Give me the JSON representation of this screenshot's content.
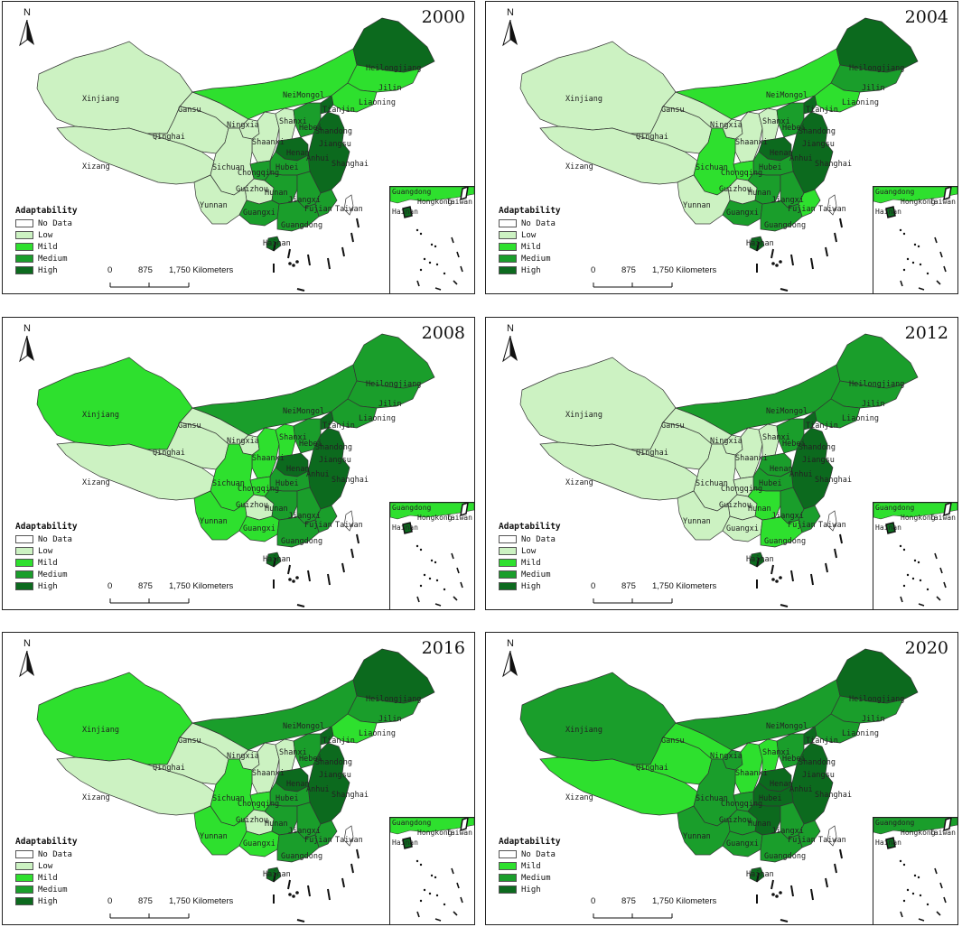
{
  "colors": {
    "No Data": "#ffffff",
    "Low": "#ccf2c2",
    "Mild": "#2ee02e",
    "Medium": "#1a9e2b",
    "High": "#0c6a1e"
  },
  "legend_title": "Adaptability",
  "scale": {
    "zero": "0",
    "mid": "875",
    "end": "1,750 Kilometers"
  },
  "north_label": "N",
  "province_labels": {
    "xinjiang": "Xinjiang",
    "xizang": "Xizang",
    "qinghai": "Qinghai",
    "gansu": "Gansu",
    "neimongol": "NeiMongol",
    "heilongjiang": "Heilongjiang",
    "jilin": "Jilin",
    "liaoning": "Liaoning",
    "sichuan": "Sichuan",
    "yunnan": "Yunnan",
    "guizhou": "Guizhou",
    "guangxi": "Guangxi",
    "hubei": "Hubei",
    "hunan": "Hunan",
    "shanxi": "Shanxi",
    "shaanxi": "Shaanxi",
    "ningxia": "Ningxia",
    "hebei": "Hebei",
    "tianjin": "Tianjin",
    "henan": "Henan",
    "jiangxi": "Jiangxi",
    "fujian": "Fujian",
    "guangdong": "Guangdong",
    "hainan": "Hainan",
    "shanghai": "Shanghai",
    "taiwan": "Taiwan",
    "chongqing": "Chongqing",
    "anhui": "Anhui",
    "jiangsu": "Jiangsu",
    "shandong": "Shandong",
    "beijing": "Beijing"
  },
  "inset_labels": {
    "guangdong": "Guangdong",
    "hainan": "Hainan",
    "hongkong": "Hongkong",
    "taiwan": "Taiwan"
  },
  "panels": [
    {
      "year": "2000",
      "legend": [
        "No Data",
        "Low",
        "Mild",
        "Medium",
        "High"
      ],
      "levels": {
        "xinjiang": "Low",
        "xizang": "Low",
        "qinghai": "Low",
        "gansu": "Low",
        "neimongol": "Mild",
        "heilongjiang": "High",
        "jilin": "Mild",
        "liaoning": "Mild",
        "sichuan": "Low",
        "yunnan": "Low",
        "guizhou": "Low",
        "guangxi": "Medium",
        "hubei": "Medium",
        "hunan": "Medium",
        "shanxi": "Low",
        "shaanxi": "Low",
        "ningxia": "Low",
        "hebei": "Medium",
        "tianjin": "High",
        "henan": "High",
        "jiangxi": "Medium",
        "fujian": "Medium",
        "guangdong": "Medium",
        "hainan": "High",
        "east": "High",
        "taiwan": "No Data",
        "chongqing": "Medium",
        "inset": "Mild"
      }
    },
    {
      "year": "2004",
      "legend": [
        "No Data",
        "Low",
        "Mild",
        "Medium",
        "High"
      ],
      "levels": {
        "xinjiang": "Low",
        "xizang": "Low",
        "qinghai": "Low",
        "gansu": "Low",
        "neimongol": "Mild",
        "heilongjiang": "High",
        "jilin": "Medium",
        "liaoning": "Mild",
        "sichuan": "Mild",
        "yunnan": "Low",
        "guizhou": "Low",
        "guangxi": "Medium",
        "hubei": "Medium",
        "hunan": "Medium",
        "shanxi": "Low",
        "shaanxi": "Low",
        "ningxia": "Low",
        "hebei": "Medium",
        "tianjin": "High",
        "henan": "High",
        "jiangxi": "Medium",
        "fujian": "Mild",
        "guangdong": "Medium",
        "hainan": "High",
        "east": "High",
        "taiwan": "No Data",
        "chongqing": "Mild",
        "inset": "Mild"
      }
    },
    {
      "year": "2008",
      "legend": [
        "No Data",
        "Low",
        "Mild",
        "Medium",
        "High"
      ],
      "levels": {
        "xinjiang": "Mild",
        "xizang": "Low",
        "qinghai": "Low",
        "gansu": "Low",
        "neimongol": "Medium",
        "heilongjiang": "Medium",
        "jilin": "Medium",
        "liaoning": "Medium",
        "sichuan": "Mild",
        "yunnan": "Mild",
        "guizhou": "Low",
        "guangxi": "Mild",
        "hubei": "Medium",
        "hunan": "Medium",
        "shanxi": "Mild",
        "shaanxi": "Mild",
        "ningxia": "Low",
        "hebei": "Medium",
        "tianjin": "High",
        "henan": "High",
        "jiangxi": "Medium",
        "fujian": "Medium",
        "guangdong": "Medium",
        "hainan": "High",
        "east": "High",
        "taiwan": "No Data",
        "chongqing": "Mild",
        "inset": "Mild"
      }
    },
    {
      "year": "2012",
      "legend": [
        "No Data",
        "Low",
        "Mild",
        "Medium",
        "High"
      ],
      "levels": {
        "xinjiang": "Low",
        "xizang": "Low",
        "qinghai": "Low",
        "gansu": "Low",
        "neimongol": "Medium",
        "heilongjiang": "Medium",
        "jilin": "Medium",
        "liaoning": "Medium",
        "sichuan": "Low",
        "yunnan": "Low",
        "guizhou": "Low",
        "guangxi": "Low",
        "hubei": "Medium",
        "hunan": "Mild",
        "shanxi": "Low",
        "shaanxi": "Low",
        "ningxia": "Low",
        "hebei": "Medium",
        "tianjin": "High",
        "henan": "Medium",
        "jiangxi": "Medium",
        "fujian": "Medium",
        "guangdong": "Mild",
        "hainan": "High",
        "east": "High",
        "taiwan": "No Data",
        "chongqing": "Low",
        "inset": "Mild"
      }
    },
    {
      "year": "2016",
      "legend": [
        "No Data",
        "Low",
        "Mild",
        "Medium",
        "High"
      ],
      "levels": {
        "xinjiang": "Mild",
        "xizang": "Low",
        "qinghai": "Low",
        "gansu": "Low",
        "neimongol": "Medium",
        "heilongjiang": "High",
        "jilin": "Medium",
        "liaoning": "Mild",
        "sichuan": "Mild",
        "yunnan": "Mild",
        "guizhou": "Low",
        "guangxi": "Mild",
        "hubei": "Medium",
        "hunan": "Medium",
        "shanxi": "Low",
        "shaanxi": "Low",
        "ningxia": "Low",
        "hebei": "Medium",
        "tianjin": "High",
        "henan": "High",
        "jiangxi": "Medium",
        "fujian": "Medium",
        "guangdong": "Medium",
        "hainan": "High",
        "east": "High",
        "taiwan": "No Data",
        "chongqing": "Mild",
        "inset": "Mild"
      }
    },
    {
      "year": "2020",
      "legend": [
        "No Data",
        "Mild",
        "Medium",
        "High"
      ],
      "levels": {
        "xinjiang": "Medium",
        "xizang": "Mild",
        "qinghai": "Mild",
        "gansu": "Mild",
        "neimongol": "Medium",
        "heilongjiang": "High",
        "jilin": "Medium",
        "liaoning": "Medium",
        "sichuan": "Medium",
        "yunnan": "Medium",
        "guizhou": "Medium",
        "guangxi": "Medium",
        "hubei": "High",
        "hunan": "High",
        "shanxi": "Mild",
        "shaanxi": "Mild",
        "ningxia": "Medium",
        "hebei": "Medium",
        "tianjin": "High",
        "henan": "High",
        "jiangxi": "Medium",
        "fujian": "Medium",
        "guangdong": "Medium",
        "hainan": "High",
        "east": "High",
        "taiwan": "No Data",
        "chongqing": "Medium",
        "inset": "Medium"
      }
    }
  ]
}
